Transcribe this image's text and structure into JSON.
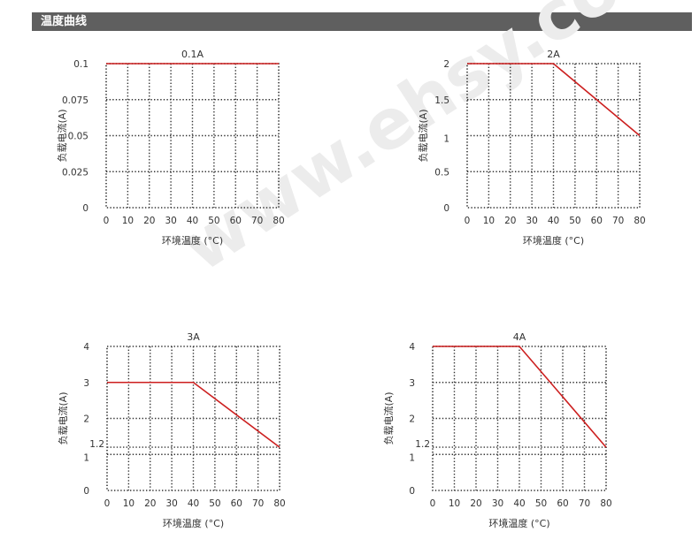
{
  "section": {
    "title": "温度曲线"
  },
  "watermark": "www.ehsy.com",
  "colors": {
    "header_bg": "#5f5f5f",
    "curve": "#cc1f1f",
    "grid": "#333333"
  },
  "chart_data": [
    {
      "type": "line",
      "title": "0.1A",
      "xlabel": "环境温度 (°C)",
      "ylabel": "负载电流(A)",
      "xlim": [
        0,
        80
      ],
      "ylim": [
        0,
        0.1
      ],
      "x_ticks": [
        "0",
        "10",
        "20",
        "30",
        "40",
        "50",
        "60",
        "70",
        "80"
      ],
      "y_ticks": [
        {
          "value": 0,
          "label": "0"
        },
        {
          "value": 0.025,
          "label": "0.025"
        },
        {
          "value": 0.05,
          "label": "0.05"
        },
        {
          "value": 0.075,
          "label": "0.075"
        },
        {
          "value": 0.1,
          "label": "0.1"
        }
      ],
      "x_grid": [
        10,
        20,
        30,
        40,
        50,
        60,
        70
      ],
      "y_grid": [
        0.025,
        0.05,
        0.075
      ],
      "grid": true,
      "series": [
        {
          "x": [
            0,
            80
          ],
          "y": [
            0.1,
            0.1
          ]
        }
      ]
    },
    {
      "type": "line",
      "title": "2A",
      "xlabel": "环境温度 (°C)",
      "ylabel": "负载电流(A)",
      "xlim": [
        0,
        80
      ],
      "ylim": [
        0,
        2
      ],
      "x_ticks": [
        "0",
        "10",
        "20",
        "30",
        "40",
        "50",
        "60",
        "70",
        "80"
      ],
      "y_ticks": [
        {
          "value": 0,
          "label": "0"
        },
        {
          "value": 0.5,
          "label": "0.5"
        },
        {
          "value": 1,
          "label": "1"
        },
        {
          "value": 1.5,
          "label": "1.5"
        },
        {
          "value": 2,
          "label": "2"
        }
      ],
      "x_grid": [
        10,
        20,
        30,
        40,
        50,
        60,
        70
      ],
      "y_grid": [
        0.5,
        1,
        1.5
      ],
      "grid": true,
      "series": [
        {
          "x": [
            0,
            40,
            80
          ],
          "y": [
            2,
            2,
            1
          ]
        }
      ]
    },
    {
      "type": "line",
      "title": "3A",
      "xlabel": "环境温度 (°C)",
      "ylabel": "负载电流(A)",
      "xlim": [
        0,
        80
      ],
      "ylim": [
        0,
        4
      ],
      "x_ticks": [
        "0",
        "10",
        "20",
        "30",
        "40",
        "50",
        "60",
        "70",
        "80"
      ],
      "y_ticks": [
        {
          "value": 0,
          "label": "0"
        },
        {
          "value": 1,
          "label": "1"
        },
        {
          "value": 1.2,
          "label": "1.2"
        },
        {
          "value": 2,
          "label": "2"
        },
        {
          "value": 3,
          "label": "3"
        },
        {
          "value": 4,
          "label": "4"
        }
      ],
      "x_grid": [
        10,
        20,
        30,
        40,
        50,
        60,
        70
      ],
      "y_grid": [
        1,
        1.2,
        2,
        3
      ],
      "grid": true,
      "series": [
        {
          "x": [
            0,
            40,
            80
          ],
          "y": [
            3,
            3,
            1.2
          ]
        }
      ]
    },
    {
      "type": "line",
      "title": "4A",
      "xlabel": "环境温度 (°C)",
      "ylabel": "负载电流(A)",
      "xlim": [
        0,
        80
      ],
      "ylim": [
        0,
        4
      ],
      "x_ticks": [
        "0",
        "10",
        "20",
        "30",
        "40",
        "50",
        "60",
        "70",
        "80"
      ],
      "y_ticks": [
        {
          "value": 0,
          "label": "0"
        },
        {
          "value": 1,
          "label": "1"
        },
        {
          "value": 1.2,
          "label": "1.2"
        },
        {
          "value": 2,
          "label": "2"
        },
        {
          "value": 3,
          "label": "3"
        },
        {
          "value": 4,
          "label": "4"
        }
      ],
      "x_grid": [
        10,
        20,
        30,
        40,
        50,
        60,
        70
      ],
      "y_grid": [
        1,
        1.2,
        2,
        3
      ],
      "grid": true,
      "series": [
        {
          "x": [
            0,
            40,
            80
          ],
          "y": [
            4,
            4,
            1.2
          ]
        }
      ]
    }
  ]
}
